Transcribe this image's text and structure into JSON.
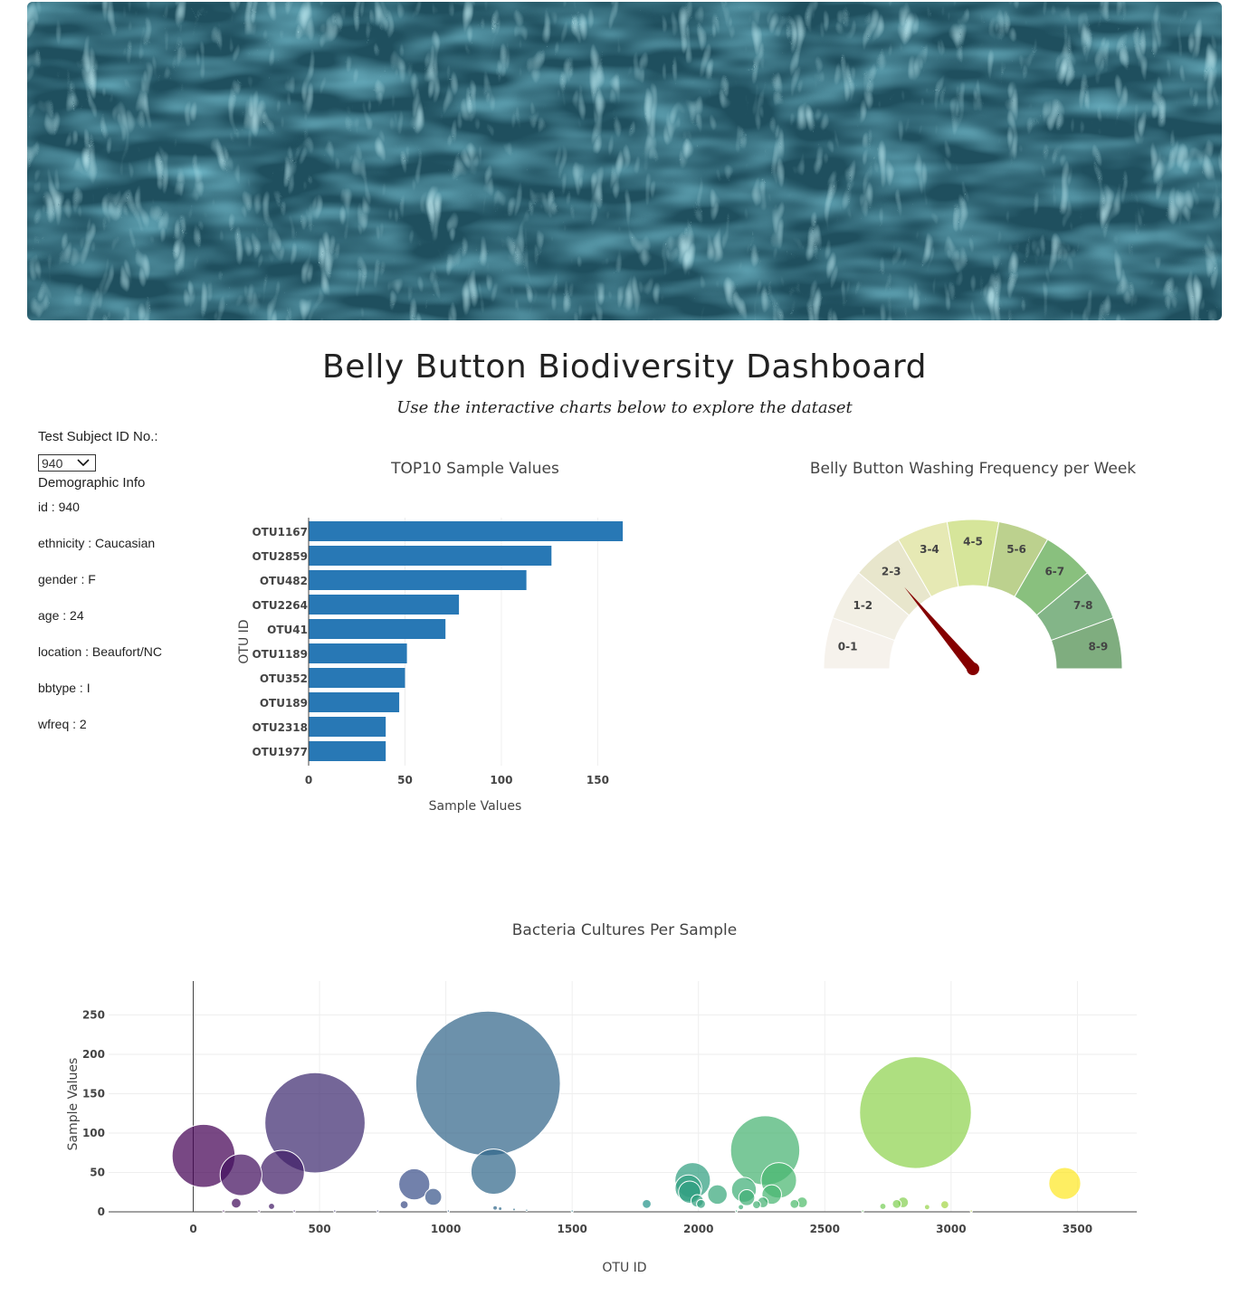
{
  "header": {
    "title": "Belly Button Biodiversity Dashboard",
    "subtitle": "Use the interactive charts below to explore the dataset"
  },
  "sidebar": {
    "select_label": "Test Subject ID No.:",
    "selected_id": "940",
    "demographic_title": "Demographic Info",
    "demographics": [
      "id : 940",
      "ethnicity : Caucasian",
      "gender : F",
      "age : 24",
      "location : Beaufort/NC",
      "bbtype : I",
      "wfreq : 2"
    ]
  },
  "colors": {
    "bar": "#2878b5",
    "needle": "#850000"
  },
  "chart_data": [
    {
      "type": "bar",
      "title": "TOP10 Sample Values",
      "orientation": "horizontal",
      "xlabel": "Sample Values",
      "ylabel": "OTU ID",
      "categories": [
        "OTU1167",
        "OTU2859",
        "OTU482",
        "OTU2264",
        "OTU41",
        "OTU1189",
        "OTU352",
        "OTU189",
        "OTU2318",
        "OTU1977"
      ],
      "values": [
        163,
        126,
        113,
        78,
        71,
        51,
        50,
        47,
        40,
        40
      ],
      "xticks": [
        "0",
        "50",
        "100",
        "150"
      ],
      "xlim": [
        0,
        170
      ]
    },
    {
      "type": "gauge",
      "title": "Belly Button Washing Frequency per Week",
      "sections": [
        "0-1",
        "1-2",
        "2-3",
        "3-4",
        "4-5",
        "5-6",
        "6-7",
        "7-8",
        "8-9"
      ],
      "section_colors": [
        "#f6f2ec",
        "#f2efe4",
        "#e8e6cc",
        "#e6e9b4",
        "#d6e59a",
        "#bcd18e",
        "#89c07e",
        "#83b588",
        "#7fad7f"
      ],
      "range": [
        0,
        9
      ],
      "value": 2
    },
    {
      "type": "scatter",
      "subtype": "bubble",
      "title": "Bacteria Cultures Per Sample",
      "xlabel": "OTU ID",
      "ylabel": "Sample Values",
      "xticks": [
        "0",
        "500",
        "1000",
        "1500",
        "2000",
        "2500",
        "3000",
        "3500"
      ],
      "yticks": [
        "0",
        "50",
        "100",
        "150",
        "200",
        "250"
      ],
      "xlim": [
        -335,
        3735
      ],
      "ylim": [
        0,
        293
      ],
      "colorscale": "Viridis",
      "points": [
        {
          "x": 41,
          "y": 71
        },
        {
          "x": 189,
          "y": 47
        },
        {
          "x": 352,
          "y": 50
        },
        {
          "x": 482,
          "y": 113
        },
        {
          "x": 170,
          "y": 11
        },
        {
          "x": 310,
          "y": 7
        },
        {
          "x": 835,
          "y": 9
        },
        {
          "x": 875,
          "y": 35
        },
        {
          "x": 950,
          "y": 19
        },
        {
          "x": 1167,
          "y": 163
        },
        {
          "x": 1189,
          "y": 51
        },
        {
          "x": 1195,
          "y": 5
        },
        {
          "x": 1215,
          "y": 4
        },
        {
          "x": 1270,
          "y": 3
        },
        {
          "x": 1320,
          "y": 2
        },
        {
          "x": 1795,
          "y": 10
        },
        {
          "x": 1977,
          "y": 40
        },
        {
          "x": 1960,
          "y": 30
        },
        {
          "x": 1965,
          "y": 25
        },
        {
          "x": 2075,
          "y": 22
        },
        {
          "x": 1995,
          "y": 14
        },
        {
          "x": 2010,
          "y": 10
        },
        {
          "x": 2180,
          "y": 28
        },
        {
          "x": 2191,
          "y": 18
        },
        {
          "x": 2168,
          "y": 6
        },
        {
          "x": 2230,
          "y": 9
        },
        {
          "x": 2255,
          "y": 12
        },
        {
          "x": 2264,
          "y": 78
        },
        {
          "x": 2318,
          "y": 40
        },
        {
          "x": 2290,
          "y": 22
        },
        {
          "x": 2380,
          "y": 10
        },
        {
          "x": 2410,
          "y": 12
        },
        {
          "x": 2730,
          "y": 7
        },
        {
          "x": 2785,
          "y": 10
        },
        {
          "x": 2810,
          "y": 12
        },
        {
          "x": 2859,
          "y": 126
        },
        {
          "x": 2905,
          "y": 6
        },
        {
          "x": 2975,
          "y": 9
        },
        {
          "x": 3450,
          "y": 36
        },
        {
          "x": 120,
          "y": 1
        },
        {
          "x": 260,
          "y": 1
        },
        {
          "x": 400,
          "y": 1
        },
        {
          "x": 560,
          "y": 1
        },
        {
          "x": 730,
          "y": 1
        },
        {
          "x": 1010,
          "y": 1
        },
        {
          "x": 1500,
          "y": 1
        },
        {
          "x": 2150,
          "y": 1
        },
        {
          "x": 2650,
          "y": 1
        },
        {
          "x": 3080,
          "y": 1
        }
      ]
    }
  ]
}
